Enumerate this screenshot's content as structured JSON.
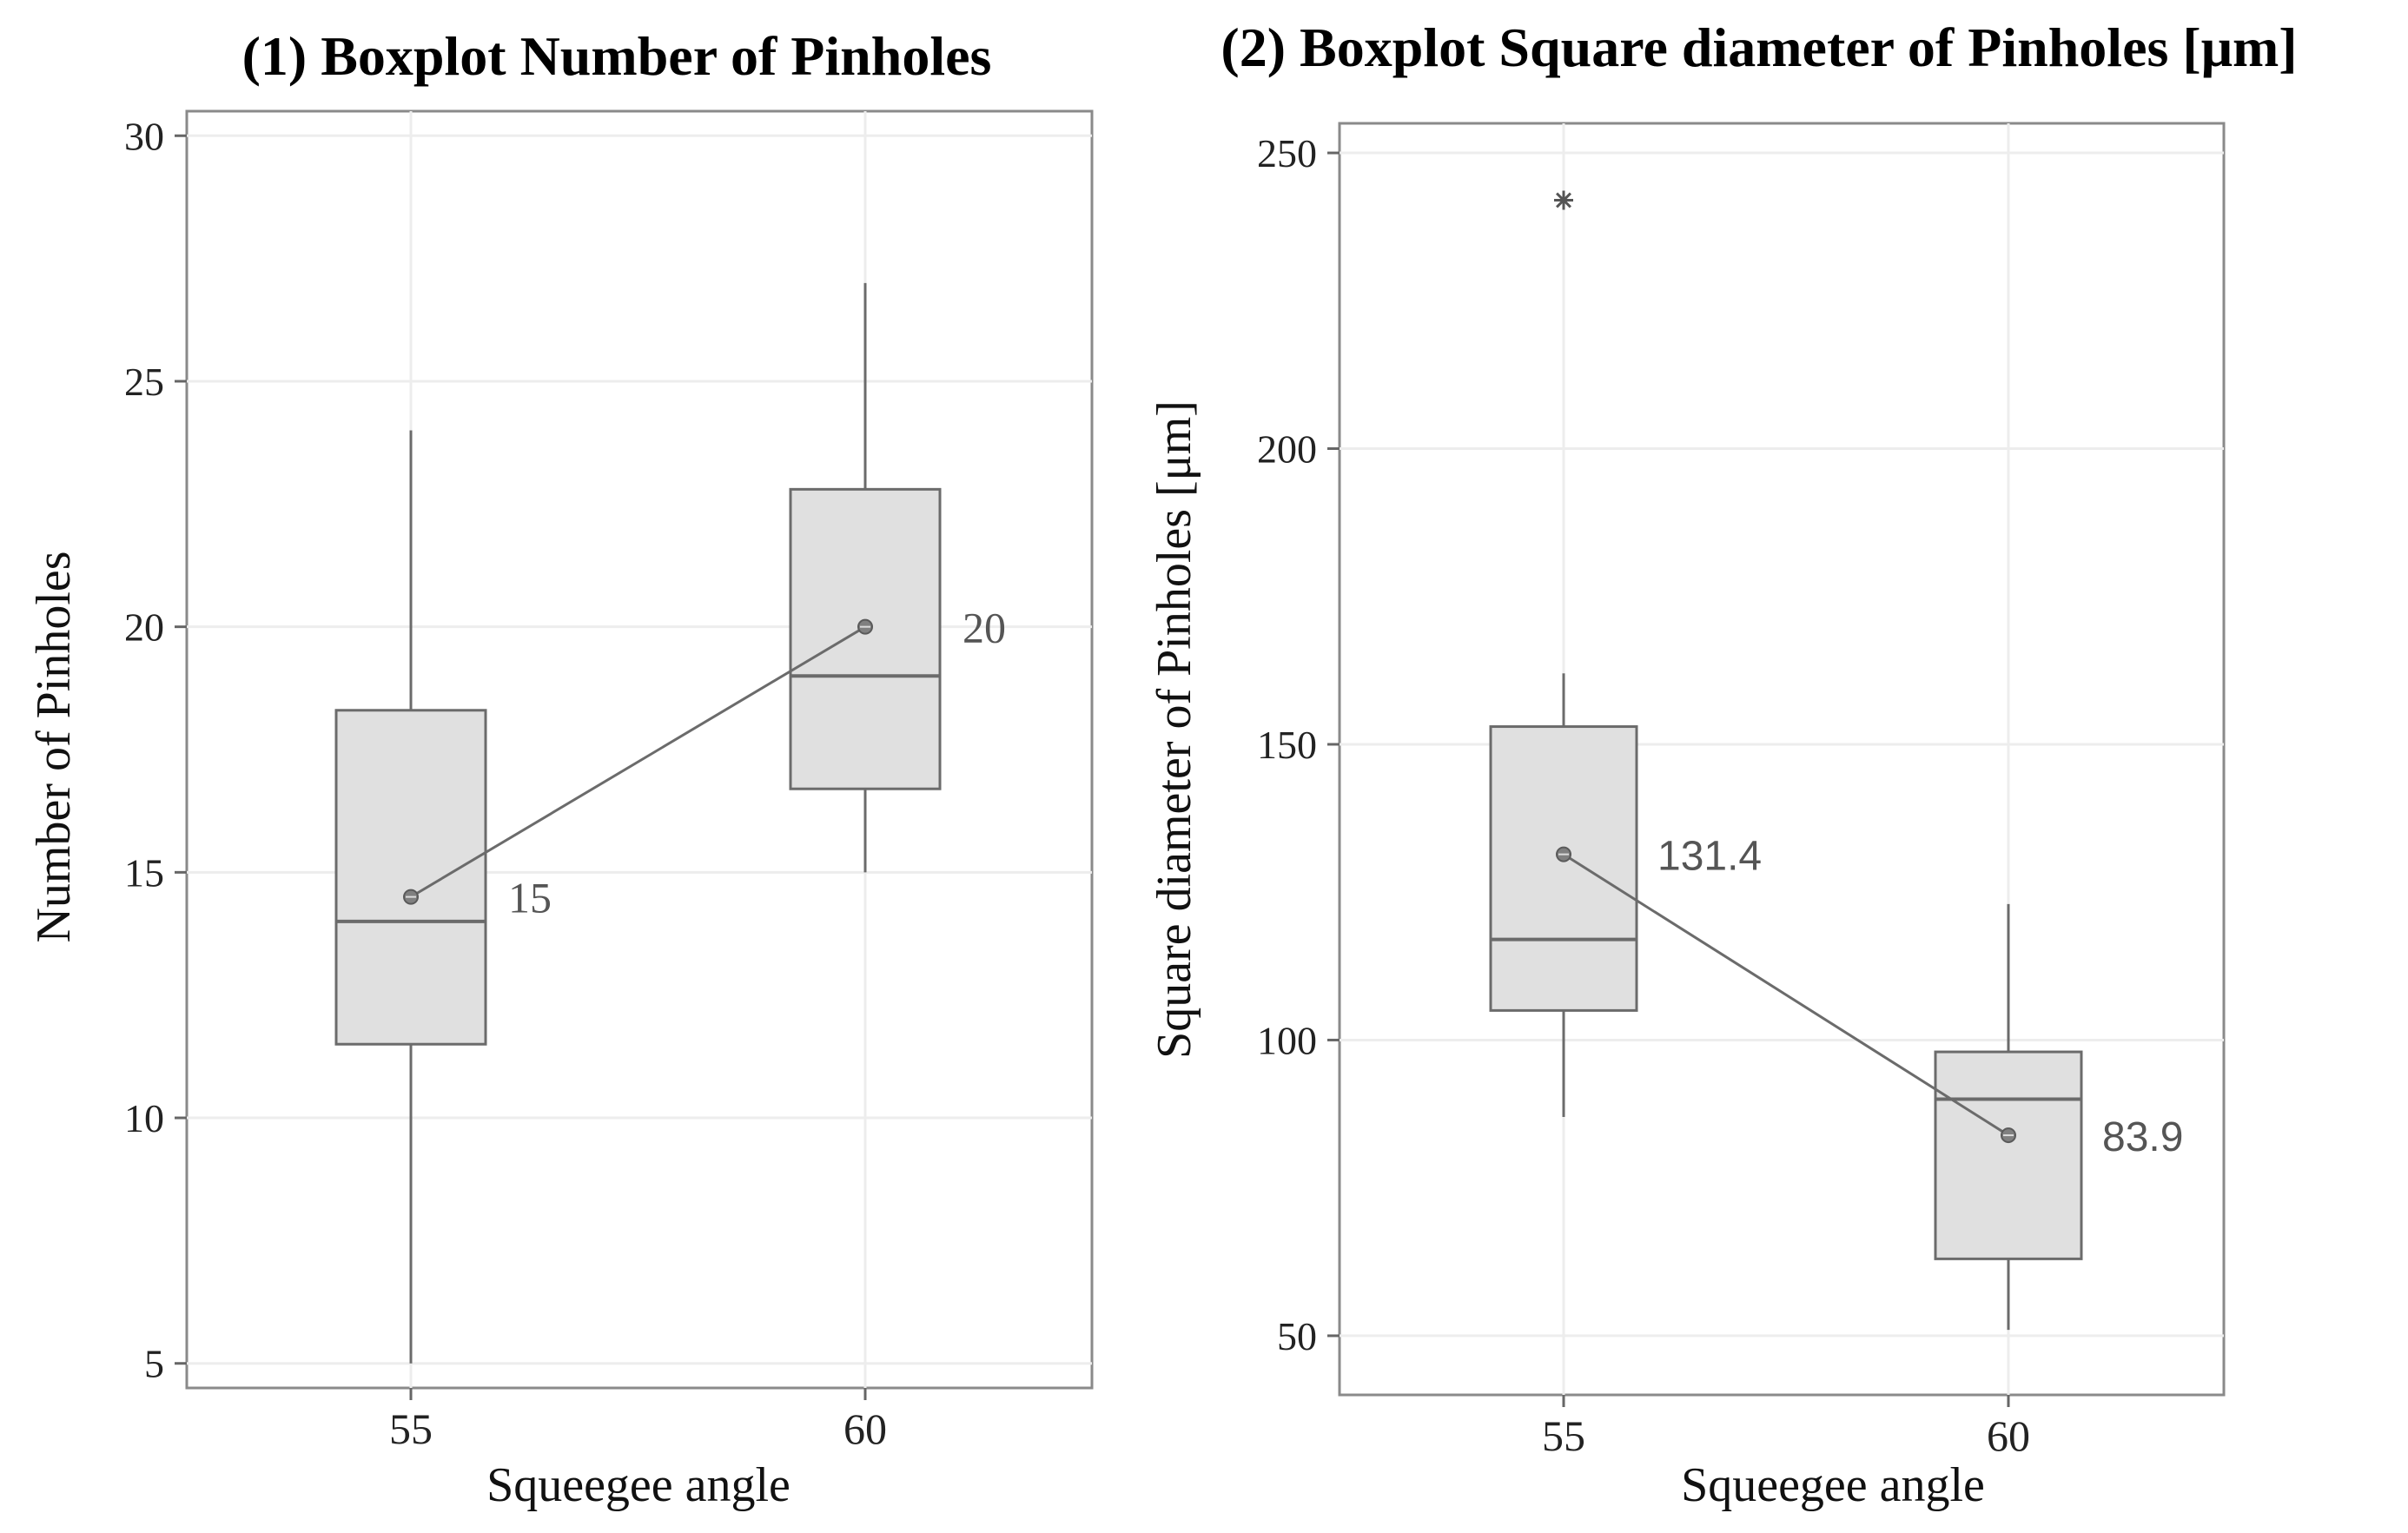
{
  "chart_data": [
    {
      "type": "box",
      "title": "(1) Boxplot Number  of Pinholes",
      "xlabel": "Squeegee angle",
      "ylabel": "Number of Pinholes",
      "categories": [
        "55",
        "60"
      ],
      "ylim": [
        4.5,
        30.5
      ],
      "yticks": [
        5,
        10,
        15,
        20,
        25,
        30
      ],
      "grid": true,
      "boxes": [
        {
          "category": "55",
          "whisker_low": 5,
          "q1": 11.5,
          "median": 14,
          "q3": 18.3,
          "whisker_high": 24,
          "outliers": [],
          "mean": 14.5,
          "mean_label": "15"
        },
        {
          "category": "60",
          "whisker_low": 15,
          "q1": 16.7,
          "median": 19,
          "q3": 22.8,
          "whisker_high": 27,
          "outliers": [],
          "mean": 20,
          "mean_label": "20"
        }
      ],
      "mean_line": true
    },
    {
      "type": "box",
      "title": "(2) Boxplot Square diameter of Pinholes [μm]",
      "xlabel": "Squeegee angle",
      "ylabel": "Square diameter of Pinholes  [μm]",
      "categories": [
        "55",
        "60"
      ],
      "ylim": [
        40,
        255
      ],
      "yticks": [
        50,
        100,
        150,
        200,
        250
      ],
      "grid": true,
      "boxes": [
        {
          "category": "55",
          "whisker_low": 87,
          "q1": 105,
          "median": 117,
          "q3": 153,
          "whisker_high": 162,
          "outliers": [
            242
          ],
          "mean": 131.4,
          "mean_label": "131.4"
        },
        {
          "category": "60",
          "whisker_low": 51,
          "q1": 63,
          "median": 90,
          "q3": 98,
          "whisker_high": 123,
          "outliers": [],
          "mean": 83.9,
          "mean_label": "83.9"
        }
      ],
      "mean_line": true
    }
  ]
}
